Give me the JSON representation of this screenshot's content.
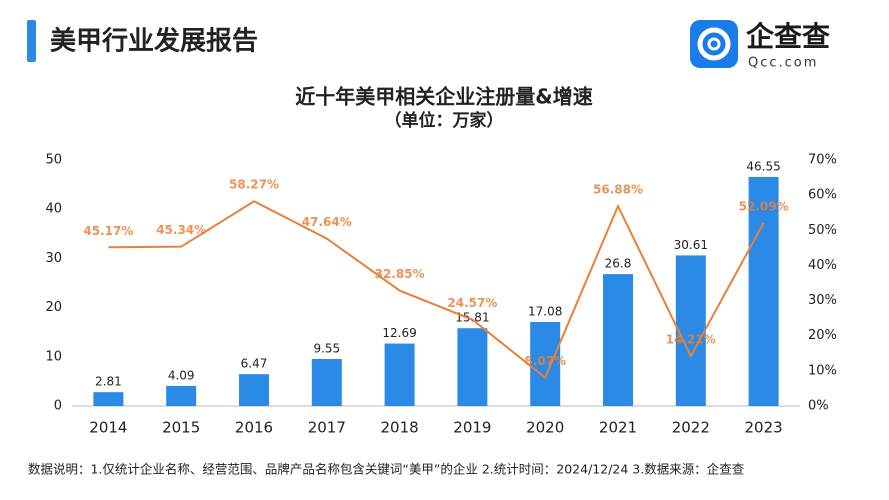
{
  "header": {
    "title": "美甲行业发展报告",
    "logo": "企查查",
    "logo_sub": "Qcc.com"
  },
  "chart_data": {
    "type": "bar",
    "title": "近十年美甲相关企业注册量&增速",
    "subtitle": "（单位：万家）",
    "categories": [
      "2014",
      "2015",
      "2016",
      "2017",
      "2018",
      "2019",
      "2020",
      "2021",
      "2022",
      "2023"
    ],
    "series": [
      {
        "name": "注册量",
        "type": "bar",
        "color": "#2a8ae6",
        "values": [
          2.81,
          4.09,
          6.47,
          9.55,
          12.69,
          15.81,
          17.08,
          26.8,
          30.61,
          46.55
        ]
      },
      {
        "name": "增速",
        "type": "line",
        "axis": "y2",
        "color": "#e8803a",
        "values": [
          45.17,
          45.34,
          58.27,
          47.64,
          32.85,
          24.57,
          8.07,
          56.88,
          14.21,
          52.09
        ],
        "value_labels": [
          "45.17%",
          "45.34%",
          "58.27%",
          "47.64%",
          "32.85%",
          "24.57%",
          "8.07%",
          "56.88%",
          "14.21%",
          "52.09%"
        ]
      }
    ],
    "ylim": [
      0,
      50
    ],
    "yticks": [
      0,
      10,
      20,
      30,
      40,
      50
    ],
    "y2lim": [
      0,
      70
    ],
    "y2ticks": [
      {
        "value": 0,
        "label": "0%"
      },
      {
        "value": 10,
        "label": "10%"
      },
      {
        "value": 20,
        "label": "20%"
      },
      {
        "value": 30,
        "label": "30%"
      },
      {
        "value": 40,
        "label": "40%"
      },
      {
        "value": 50,
        "label": "50%"
      },
      {
        "value": 60,
        "label": "60%"
      },
      {
        "value": 70,
        "label": "70%"
      }
    ]
  },
  "footnote": "数据说明：1.仅统计企业名称、经营范围、品牌产品名称包含关键词“美甲”的企业   2.统计时间：2024/12/24   3.数据来源：企查查"
}
